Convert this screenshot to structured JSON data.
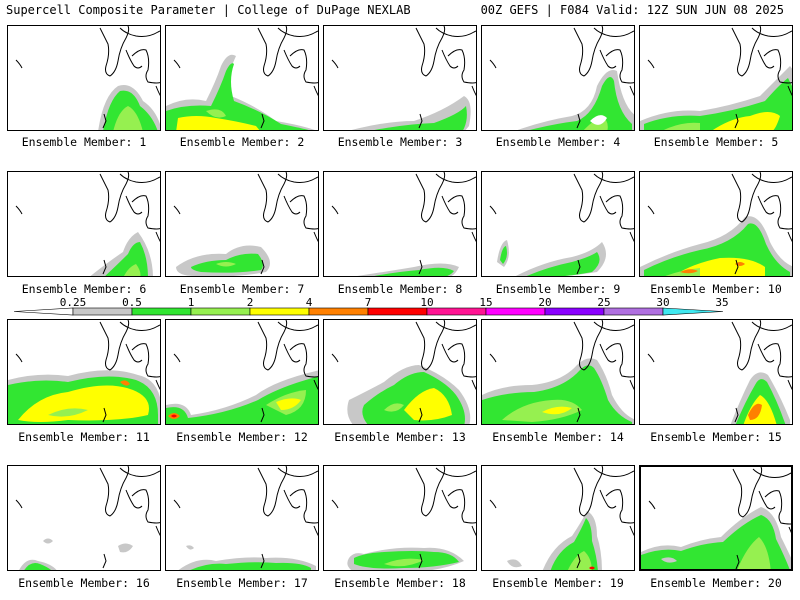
{
  "header": {
    "title_left": "Supercell Composite Parameter | College of DuPage NEXLAB",
    "title_right": "00Z GEFS | F084 Valid: 12Z SUN JUN 08 2025"
  },
  "panels": [
    {
      "label": "Ensemble Member: 1"
    },
    {
      "label": "Ensemble Member: 2"
    },
    {
      "label": "Ensemble Member: 3"
    },
    {
      "label": "Ensemble Member: 4"
    },
    {
      "label": "Ensemble Member: 5"
    },
    {
      "label": "Ensemble Member: 6"
    },
    {
      "label": "Ensemble Member: 7"
    },
    {
      "label": "Ensemble Member: 8"
    },
    {
      "label": "Ensemble Member: 9"
    },
    {
      "label": "Ensemble Member: 10"
    },
    {
      "label": "Ensemble Member: 11"
    },
    {
      "label": "Ensemble Member: 12"
    },
    {
      "label": "Ensemble Member: 13"
    },
    {
      "label": "Ensemble Member: 14"
    },
    {
      "label": "Ensemble Member: 15"
    },
    {
      "label": "Ensemble Member: 16"
    },
    {
      "label": "Ensemble Member: 17"
    },
    {
      "label": "Ensemble Member: 18"
    },
    {
      "label": "Ensemble Member: 19"
    },
    {
      "label": "Ensemble Member: 20"
    }
  ],
  "colorbar": {
    "ticks": [
      "0.25",
      "0.5",
      "1",
      "2",
      "4",
      "7",
      "10",
      "15",
      "20",
      "25",
      "30",
      "35"
    ],
    "colors": [
      "#ffffff",
      "#c8c8c8",
      "#32e632",
      "#96f050",
      "#ffff00",
      "#ff8000",
      "#ff0000",
      "#ff1493",
      "#ff00ff",
      "#8a00ff",
      "#b070e0",
      "#40e8f0"
    ]
  }
}
